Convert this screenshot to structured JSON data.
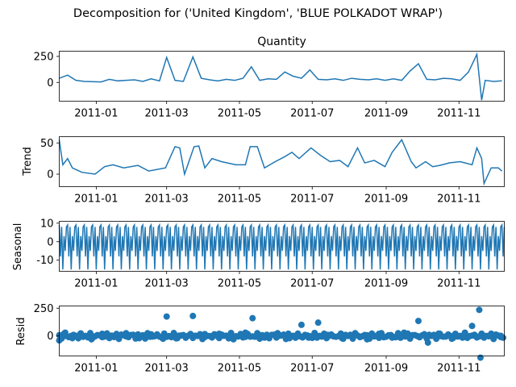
{
  "suptitle": "Decomposition for ('United Kingdom', 'BLUE POLKADOT WRAP')",
  "line_color": "#1f77b4",
  "x_tick_labels": [
    "2011-01",
    "2011-03",
    "2011-05",
    "2011-07",
    "2011-09",
    "2011-11"
  ],
  "chart_data": [
    {
      "type": "line",
      "title": "Quantity",
      "ylabel": "",
      "x_range": [
        "2010-12-01",
        "2011-12-09"
      ],
      "ylim": [
        -180,
        300
      ],
      "yticks": [
        0,
        250
      ],
      "seasonal_period_days": 7,
      "x": [
        "2010-12-01",
        "2010-12-08",
        "2010-12-15",
        "2010-12-22",
        "2011-01-05",
        "2011-01-12",
        "2011-01-19",
        "2011-01-26",
        "2011-02-02",
        "2011-02-09",
        "2011-02-16",
        "2011-02-23",
        "2011-03-01",
        "2011-03-08",
        "2011-03-15",
        "2011-03-23",
        "2011-03-30",
        "2011-04-06",
        "2011-04-13",
        "2011-04-20",
        "2011-04-27",
        "2011-05-04",
        "2011-05-11",
        "2011-05-18",
        "2011-05-25",
        "2011-06-01",
        "2011-06-08",
        "2011-06-15",
        "2011-06-22",
        "2011-06-29",
        "2011-07-06",
        "2011-07-13",
        "2011-07-20",
        "2011-07-27",
        "2011-08-03",
        "2011-08-10",
        "2011-08-17",
        "2011-08-24",
        "2011-08-31",
        "2011-09-07",
        "2011-09-14",
        "2011-09-21",
        "2011-09-28",
        "2011-10-05",
        "2011-10-12",
        "2011-10-19",
        "2011-10-26",
        "2011-11-02",
        "2011-11-09",
        "2011-11-16",
        "2011-11-20",
        "2011-11-23",
        "2011-11-30",
        "2011-12-07"
      ],
      "values": [
        40,
        70,
        20,
        10,
        5,
        30,
        15,
        20,
        25,
        10,
        35,
        15,
        240,
        20,
        10,
        245,
        40,
        25,
        15,
        30,
        20,
        40,
        150,
        20,
        35,
        30,
        100,
        60,
        40,
        120,
        30,
        25,
        35,
        20,
        40,
        30,
        25,
        35,
        20,
        35,
        20,
        110,
        180,
        30,
        25,
        40,
        35,
        20,
        100,
        270,
        -170,
        20,
        10,
        15
      ]
    },
    {
      "type": "line",
      "title": "",
      "ylabel": "Trend",
      "x_range": [
        "2010-12-01",
        "2011-12-09"
      ],
      "ylim": [
        -20,
        60
      ],
      "yticks": [
        0,
        50
      ],
      "x": [
        "2010-12-01",
        "2010-12-04",
        "2010-12-08",
        "2010-12-12",
        "2010-12-20",
        "2010-12-31",
        "2011-01-08",
        "2011-01-15",
        "2011-01-24",
        "2011-02-05",
        "2011-02-14",
        "2011-02-28",
        "2011-03-08",
        "2011-03-12",
        "2011-03-16",
        "2011-03-24",
        "2011-03-28",
        "2011-04-02",
        "2011-04-08",
        "2011-04-16",
        "2011-04-28",
        "2011-05-06",
        "2011-05-10",
        "2011-05-16",
        "2011-05-22",
        "2011-05-31",
        "2011-06-08",
        "2011-06-14",
        "2011-06-20",
        "2011-06-30",
        "2011-07-08",
        "2011-07-16",
        "2011-07-24",
        "2011-07-31",
        "2011-08-08",
        "2011-08-14",
        "2011-08-22",
        "2011-08-31",
        "2011-09-06",
        "2011-09-14",
        "2011-09-22",
        "2011-09-26",
        "2011-10-04",
        "2011-10-10",
        "2011-10-16",
        "2011-10-24",
        "2011-11-02",
        "2011-11-12",
        "2011-11-16",
        "2011-11-20",
        "2011-11-22",
        "2011-11-28",
        "2011-12-04",
        "2011-12-07"
      ],
      "values": [
        55,
        15,
        25,
        10,
        3,
        0,
        12,
        15,
        10,
        14,
        5,
        10,
        44,
        42,
        0,
        44,
        45,
        10,
        25,
        20,
        15,
        15,
        44,
        44,
        10,
        20,
        28,
        35,
        25,
        42,
        30,
        20,
        22,
        12,
        42,
        18,
        22,
        12,
        35,
        55,
        20,
        10,
        20,
        12,
        14,
        18,
        20,
        15,
        42,
        25,
        -15,
        10,
        10,
        5
      ]
    },
    {
      "type": "line",
      "title": "",
      "ylabel": "Seasonal",
      "x_range": [
        "2010-12-01",
        "2011-12-09"
      ],
      "ylim": [
        -16,
        11
      ],
      "yticks": [
        -10,
        0,
        10
      ],
      "period_days": 7,
      "pattern": [
        9,
        -8,
        8,
        -15,
        3,
        -5,
        8
      ]
    },
    {
      "type": "scatter",
      "title": "",
      "ylabel": "Resid",
      "x_range": [
        "2010-12-01",
        "2011-12-09"
      ],
      "ylim": [
        -180,
        270
      ],
      "yticks": [
        0,
        250
      ],
      "x": [
        "2010-12-01",
        "2010-12-06",
        "2010-12-12",
        "2010-12-18",
        "2010-12-28",
        "2011-01-06",
        "2011-01-16",
        "2011-01-26",
        "2011-02-06",
        "2011-02-16",
        "2011-02-26",
        "2011-03-01",
        "2011-03-10",
        "2011-03-23",
        "2011-04-02",
        "2011-04-14",
        "2011-04-26",
        "2011-05-06",
        "2011-05-12",
        "2011-05-22",
        "2011-06-02",
        "2011-06-12",
        "2011-06-22",
        "2011-06-28",
        "2011-07-06",
        "2011-07-14",
        "2011-07-26",
        "2011-08-06",
        "2011-08-16",
        "2011-08-26",
        "2011-09-06",
        "2011-09-16",
        "2011-09-28",
        "2011-10-06",
        "2011-10-16",
        "2011-10-26",
        "2011-11-06",
        "2011-11-12",
        "2011-11-18",
        "2011-11-19",
        "2011-11-28",
        "2011-12-06"
      ],
      "values": [
        -40,
        30,
        -20,
        10,
        -30,
        20,
        -10,
        25,
        -20,
        15,
        -25,
        175,
        -20,
        180,
        -10,
        20,
        -30,
        30,
        160,
        -15,
        25,
        -20,
        100,
        -15,
        120,
        10,
        -20,
        25,
        -30,
        20,
        -15,
        30,
        135,
        -60,
        20,
        -25,
        30,
        90,
        235,
        -195,
        15,
        -10
      ]
    }
  ]
}
